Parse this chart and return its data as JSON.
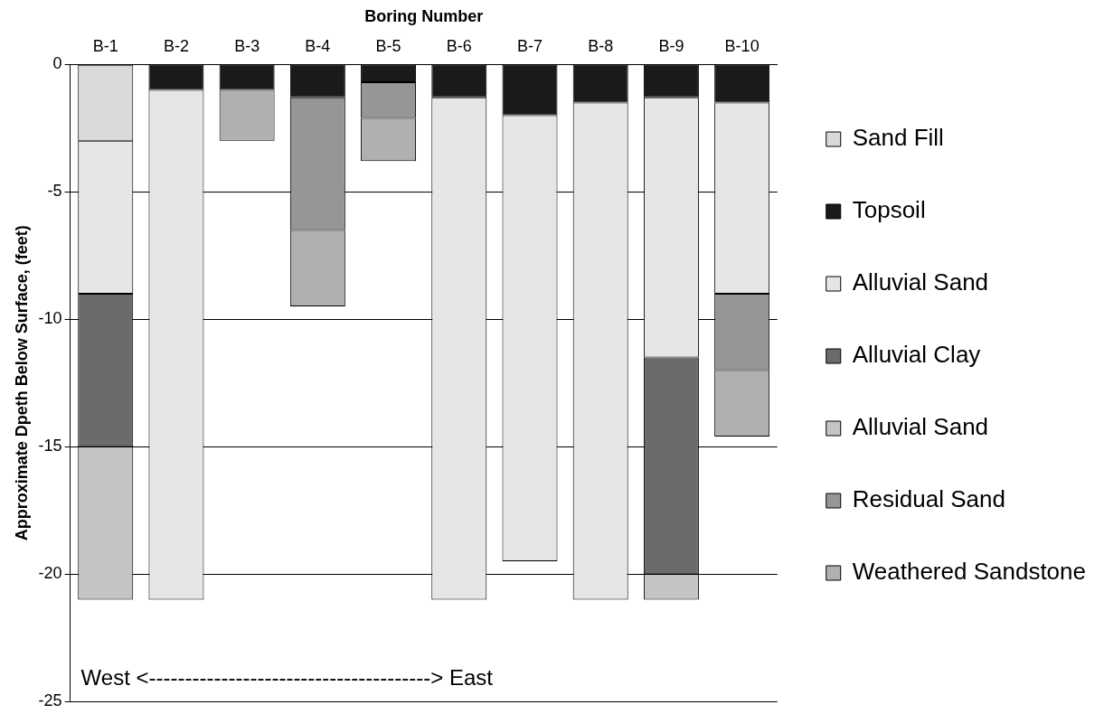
{
  "chart_data": {
    "type": "bar",
    "stacked": true,
    "xlabel": "Boring Number",
    "ylabel": "Approximate Dpeth Below Surface, (feet)",
    "categories": [
      "B-1",
      "B-2",
      "B-3",
      "B-4",
      "B-5",
      "B-6",
      "B-7",
      "B-8",
      "B-9",
      "B-10"
    ],
    "series": [
      {
        "name": "Sand Fill",
        "color": "#d9d9d9",
        "values": [
          -3,
          0,
          0,
          0,
          0,
          0,
          0,
          0,
          0,
          0
        ]
      },
      {
        "name": "Topsoil",
        "color": "#1a1a1a",
        "values": [
          0,
          -1,
          -1,
          -1.3,
          -0.7,
          -1.3,
          -2,
          -1.5,
          -1.3,
          -1.5
        ]
      },
      {
        "name": "Alluvial Sand",
        "color": "#e6e6e6",
        "values": [
          -6,
          -20,
          0,
          0,
          0,
          -19.7,
          -17.5,
          -19.5,
          -10.2,
          -7.5
        ]
      },
      {
        "name": "Alluvial Clay",
        "color": "#6b6b6b",
        "values": [
          -6,
          0,
          0,
          0,
          0,
          0,
          0,
          0,
          -8.5,
          0
        ]
      },
      {
        "name": "Alluvial Sand",
        "color": "#c4c4c4",
        "values": [
          -6,
          0,
          0,
          0,
          0,
          0,
          0,
          0,
          -1,
          0
        ]
      },
      {
        "name": "Residual Sand",
        "color": "#969696",
        "values": [
          0,
          0,
          0,
          -5.2,
          -1.4,
          0,
          0,
          0,
          0,
          -3
        ]
      },
      {
        "name": "Weathered Sandstone",
        "color": "#b0b0b0",
        "values": [
          0,
          0,
          -2,
          -3,
          -1.7,
          0,
          0,
          0,
          0,
          -2.6
        ]
      }
    ],
    "ylim": [
      -25,
      0
    ],
    "yticks": [
      -25,
      -20,
      -15,
      -10,
      -5,
      0
    ],
    "grid": "y",
    "legend": "right",
    "annotations": [
      "West <---------------------------------------> East"
    ]
  }
}
